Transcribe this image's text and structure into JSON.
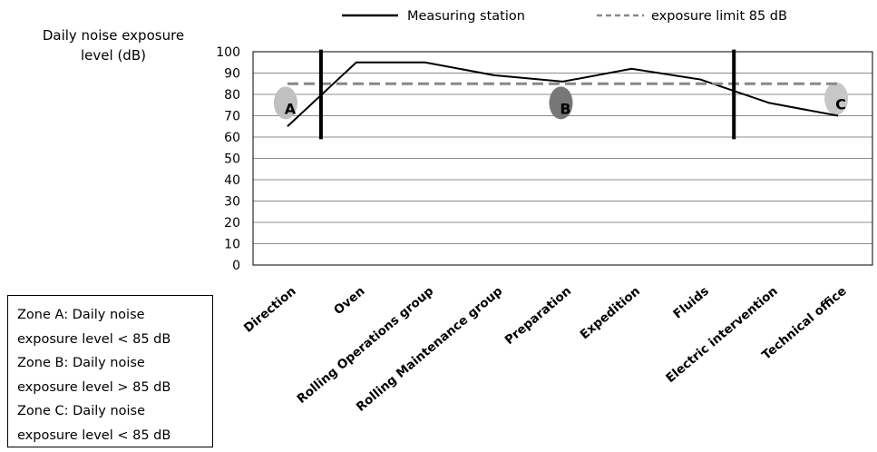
{
  "chart_data": {
    "type": "line",
    "ylabel": "Daily noise exposure level (dB)",
    "ylabel_lines": [
      "Daily noise exposure",
      "level (dB)"
    ],
    "categories": [
      "Direction",
      "Oven",
      "Rolling Operations group",
      "Rolling Maintenance group",
      "Preparation",
      "Expedition",
      "Fluids",
      "Electric intervention",
      "Technical office"
    ],
    "series": [
      {
        "name": "Measuring station",
        "values": [
          65,
          95,
          95,
          89,
          86,
          92,
          87,
          76,
          70
        ],
        "color": "#000000",
        "style": "solid"
      },
      {
        "name": "exposure limit 85 dB",
        "values": [
          85,
          85,
          85,
          85,
          85,
          85,
          85,
          85,
          85
        ],
        "color": "#888888",
        "style": "dashed"
      }
    ],
    "yticks": [
      0,
      10,
      20,
      30,
      40,
      50,
      60,
      70,
      80,
      90,
      100
    ],
    "ylim": [
      0,
      100
    ],
    "grid": true,
    "legend": "top",
    "zone_boundaries_after": [
      "Direction",
      "Fluids"
    ],
    "zones": [
      {
        "label": "A",
        "color": "#c0c0c0"
      },
      {
        "label": "B",
        "color": "#777777"
      },
      {
        "label": "C",
        "color": "#c8c8c8"
      }
    ]
  },
  "zone_legend": [
    "Zone A: Daily noise",
    "exposure level < 85 dB",
    "Zone B: Daily noise",
    "exposure level > 85 dB",
    "Zone C: Daily noise",
    "exposure level < 85 dB"
  ]
}
